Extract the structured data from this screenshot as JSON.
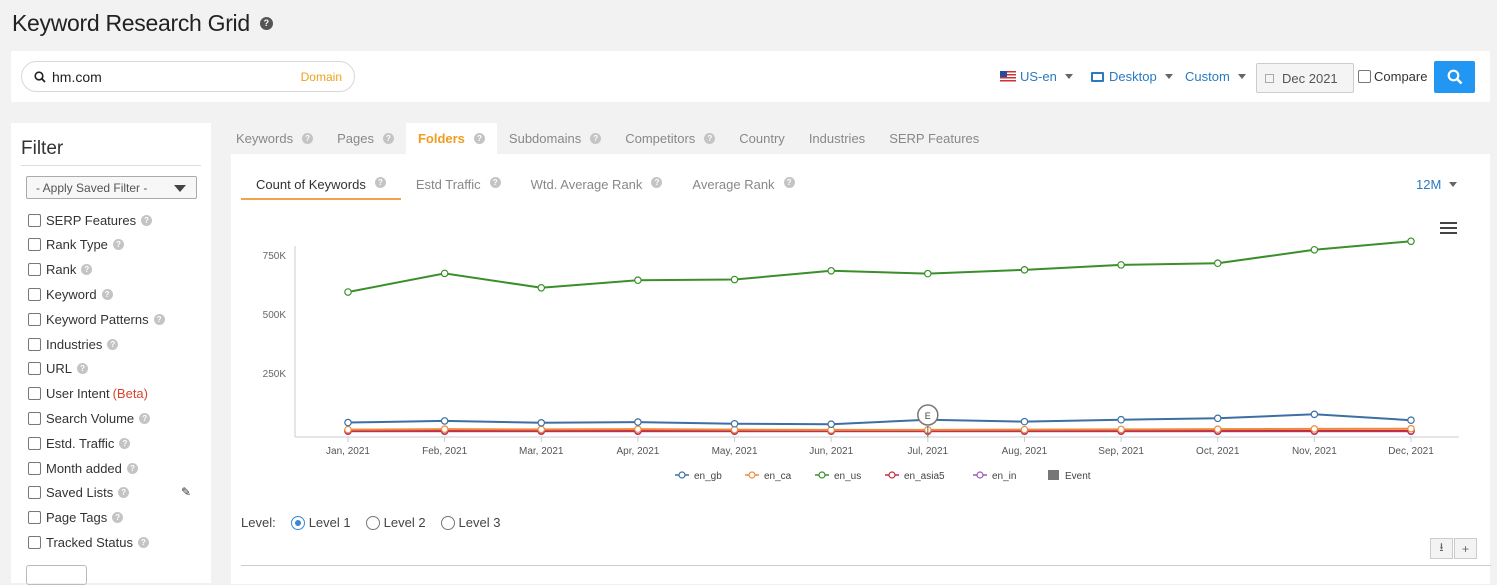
{
  "page": {
    "title": "Keyword Research Grid"
  },
  "search": {
    "query": "hm.com",
    "scope": "Domain"
  },
  "controls": {
    "locale": "US-en",
    "device": "Desktop",
    "range": "Custom",
    "date": "Dec 2021",
    "compare": "Compare"
  },
  "filter": {
    "heading": "Filter",
    "saved": "- Apply Saved Filter -",
    "items": [
      {
        "label": "SERP Features"
      },
      {
        "label": "Rank Type"
      },
      {
        "label": "Rank"
      },
      {
        "label": "Keyword"
      },
      {
        "label": "Keyword Patterns"
      },
      {
        "label": "Industries"
      },
      {
        "label": "URL"
      },
      {
        "label": "User Intent",
        "tag": "(Beta)"
      },
      {
        "label": "Search Volume"
      },
      {
        "label": "Estd. Traffic"
      },
      {
        "label": "Month added"
      },
      {
        "label": "Saved Lists"
      },
      {
        "label": "Page Tags"
      },
      {
        "label": "Tracked Status"
      }
    ]
  },
  "tabs": [
    "Keywords",
    "Pages",
    "Folders",
    "Subdomains",
    "Competitors",
    "Country",
    "Industries",
    "SERP Features"
  ],
  "active_tab": "Folders",
  "subtabs": [
    "Count of Keywords",
    "Estd Traffic",
    "Wtd. Average Rank",
    "Average Rank"
  ],
  "active_subtab": "Count of Keywords",
  "period": "12M",
  "levels": {
    "label": "Level:",
    "options": [
      "Level 1",
      "Level 2",
      "Level 3"
    ],
    "selected": "Level 1"
  },
  "colors": {
    "accent": "#2196f3",
    "active_tab": "#f29c1f"
  },
  "chart_data": {
    "type": "line",
    "x": [
      "Jan, 2021",
      "Feb, 2021",
      "Mar, 2021",
      "Apr, 2021",
      "May, 2021",
      "Jun, 2021",
      "Jul, 2021",
      "Aug, 2021",
      "Sep, 2021",
      "Oct, 2021",
      "Nov, 2021",
      "Dec, 2021"
    ],
    "ylim": [
      0,
      900000
    ],
    "yticks": [
      {
        "v": 250000,
        "label": "250K"
      },
      {
        "v": 500000,
        "label": "500K"
      },
      {
        "v": 750000,
        "label": "750K"
      }
    ],
    "series": [
      {
        "name": "en_gb",
        "color": "#3d6fa3",
        "values": [
          40000,
          47000,
          39000,
          42000,
          35000,
          33000,
          52000,
          44000,
          52000,
          58000,
          75000,
          50000
        ]
      },
      {
        "name": "en_ca",
        "color": "#ef8a3c",
        "values": [
          10000,
          12000,
          11000,
          12000,
          10000,
          9000,
          9000,
          10000,
          11000,
          12000,
          13000,
          14000
        ]
      },
      {
        "name": "en_us",
        "color": "#3a8f2a",
        "values": [
          593000,
          672000,
          611000,
          643000,
          646000,
          683000,
          671000,
          687000,
          708000,
          715000,
          772000,
          808000
        ]
      },
      {
        "name": "en_asia5",
        "color": "#c22a40",
        "values": [
          5000,
          5000,
          5000,
          5000,
          5000,
          5000,
          5000,
          5000,
          5000,
          5000,
          5000,
          5000
        ]
      },
      {
        "name": "en_in",
        "color": "#9b59b6",
        "values": [
          3000,
          3000,
          3000,
          3000,
          3000,
          3000,
          3000,
          3000,
          3000,
          3000,
          3000,
          3000
        ]
      }
    ],
    "event": {
      "label": "E",
      "x": "Jul, 2021",
      "legend": "Event"
    }
  }
}
